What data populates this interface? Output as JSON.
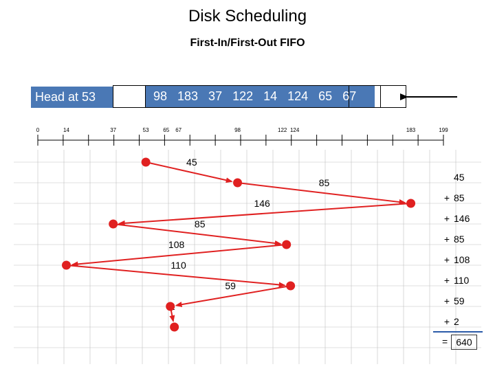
{
  "title": "Disk Scheduling",
  "subtitle": "First-In/First-Out FIFO",
  "head_label": "Head at 53",
  "queue": [
    98,
    183,
    37,
    122,
    14,
    124,
    65,
    67
  ],
  "queue_text": "98 183 37 122 14 124 65 67",
  "colors": {
    "accent": "#4a78b5",
    "arrow": "#e02020",
    "dot": "#e02020",
    "grid": "#c0c0c0"
  },
  "axis": {
    "min": 0,
    "max": 199,
    "tick_labels": [
      "0",
      "14",
      "37",
      "53",
      "65",
      "67",
      "98",
      "122",
      "124",
      "183",
      "199"
    ]
  },
  "sequence": [
    53,
    98,
    183,
    37,
    122,
    14,
    124,
    65,
    67
  ],
  "movements": [
    "45",
    "85",
    "146",
    "85",
    "108",
    "110",
    "59",
    "2"
  ],
  "sum": {
    "terms": [
      "45",
      "85",
      "146",
      "85",
      "108",
      "110",
      "59",
      "2"
    ],
    "plus": "+",
    "equals": "=",
    "total": "640"
  }
}
